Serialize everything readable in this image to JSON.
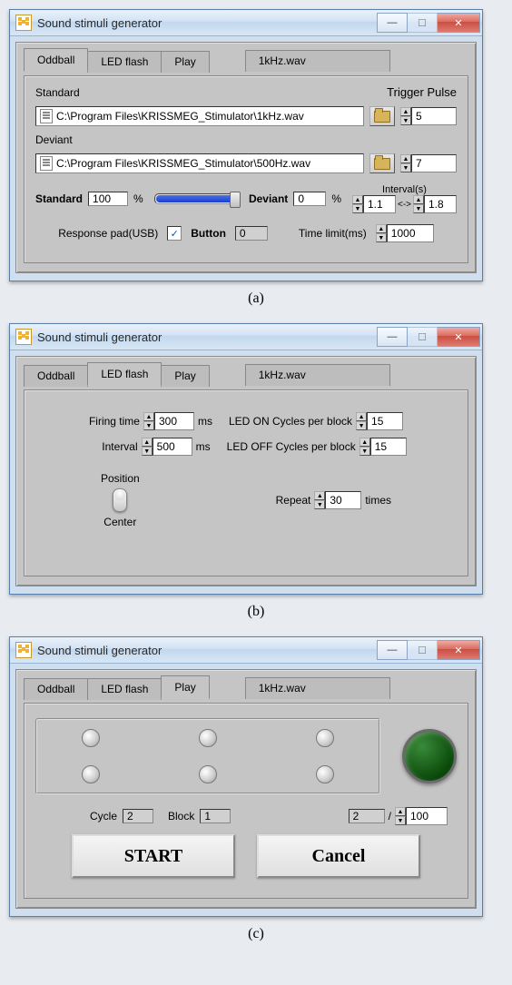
{
  "window_title": "Sound stimuli generator",
  "tabs": {
    "oddball": "Oddball",
    "led": "LED flash",
    "play": "Play"
  },
  "filename": "1kHz.wav",
  "captions": {
    "a": "(a)",
    "b": "(b)",
    "c": "(c)"
  },
  "panel_a": {
    "standard_label": "Standard",
    "deviant_label": "Deviant",
    "trigger_pulse_label": "Trigger Pulse",
    "standard_path": "C:\\Program Files\\KRISSMEG_Stimulator\\1kHz.wav",
    "deviant_path": "C:\\Program Files\\KRISSMEG_Stimulator\\500Hz.wav",
    "trigger_standard": "5",
    "trigger_deviant": "7",
    "standard_pct_label": "Standard",
    "standard_pct": "100",
    "pct_sign": "%",
    "deviant_pct_label": "Deviant",
    "deviant_pct": "0",
    "interval_label": "Interval(s)",
    "interval_lo": "1.1",
    "interval_sep": "<->",
    "interval_hi": "1.8",
    "slider_fill_pct": 100,
    "response_pad_label": "Response pad(USB)",
    "response_pad_checked": "✓",
    "button_label": "Button",
    "button_val": "0",
    "timelimit_label": "Time limit(ms)",
    "timelimit_val": "1000"
  },
  "panel_b": {
    "firing_label": "Firing time",
    "firing_val": "300",
    "ms": "ms",
    "interval_label": "Interval",
    "interval_val": "500",
    "on_label": "LED ON Cycles per block",
    "on_val": "15",
    "off_label": "LED OFF Cycles per block",
    "off_val": "15",
    "position_label": "Position",
    "position_val": "Center",
    "repeat_label": "Repeat",
    "repeat_val": "30",
    "times": "times"
  },
  "panel_c": {
    "cycle_label": "Cycle",
    "cycle_val": "2",
    "block_label": "Block",
    "block_val": "1",
    "progress_cur": "2",
    "progress_sep": "/",
    "progress_total": "100",
    "start": "START",
    "cancel": "Cancel"
  },
  "colors": {
    "window_border": "#5a7fa8",
    "panel_bg": "#c5c5c5",
    "slider_fill": "#1a3fd0",
    "led_big": "#0a4a0a"
  }
}
